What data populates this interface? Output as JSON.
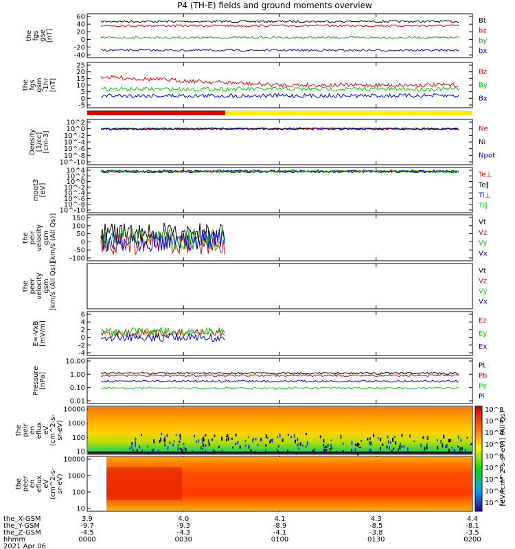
{
  "title": "P4 (TH-E) fields and ground moments overview",
  "date_label": "2021 Apr 06",
  "footer": {
    "row_labels": [
      "the_X-GSM",
      "the_Y-GSM",
      "the_Z-GSM",
      "hhmm"
    ],
    "columns": [
      [
        "3.9",
        "-9.7",
        "-4.5",
        "0000"
      ],
      [
        "4.0",
        "-9.3",
        "-4.3",
        "0030"
      ],
      [
        "4.1",
        "-8.9",
        "-4.1",
        "0100"
      ],
      [
        "4.3",
        "-8.5",
        "-3.8",
        "0130"
      ],
      [
        "4.4",
        "-8.1",
        "-3.5",
        "0200"
      ]
    ]
  },
  "colorbar_label": "[eV/(cm^2-s-sr-eV)] (All Qs)",
  "colors": {
    "black": "#000000",
    "red": "#dd0000",
    "green": "#00cc00",
    "blue": "#0000cc",
    "purple": "#8800aa",
    "yellow": "#ffee00",
    "orange": "#ff8800"
  },
  "chart_data": [
    {
      "type": "line",
      "panel": "fgs_gse",
      "ylabel": [
        "the",
        "fgs",
        "gse",
        "[nT]"
      ],
      "ylim": [
        -40,
        60
      ],
      "yticks": [
        "60",
        "40",
        "20",
        "0",
        "-20",
        "-40"
      ],
      "series": [
        {
          "name": "Bt",
          "color": "#000000",
          "level": 47
        },
        {
          "name": "bz",
          "color": "#dd0000",
          "level": 36
        },
        {
          "name": "by",
          "color": "#00aa00",
          "level": 5
        },
        {
          "name": "bx",
          "color": "#0000cc",
          "level": -28
        }
      ]
    },
    {
      "type": "line",
      "panel": "fgs_gsm",
      "ylabel": [
        "the",
        "fgs",
        "gsm",
        "-1hr",
        "[nT]"
      ],
      "ylim": [
        -5,
        25
      ],
      "yticks": [
        "25",
        "20",
        "15",
        "10",
        "5",
        "0",
        "-5"
      ],
      "series": [
        {
          "name": "Bz",
          "color": "#dd0000",
          "level": 10
        },
        {
          "name": "By",
          "color": "#00cc00",
          "level": 7
        },
        {
          "name": "Bx",
          "color": "#0000cc",
          "level": 2
        }
      ]
    },
    {
      "type": "bar",
      "panel": "mode_bar",
      "segments": [
        {
          "from": "0000",
          "to": "0043",
          "color": "#dd0000"
        },
        {
          "from": "0043",
          "to": "0200",
          "color": "#ffee00"
        }
      ]
    },
    {
      "type": "line",
      "panel": "density",
      "ylabel": [
        "Density",
        "[1/cc]",
        "[cm-3]"
      ],
      "log": true,
      "yticks": [
        "10^2",
        "10^0",
        "10^-2",
        "10^-4",
        "10^-6",
        "10^-8",
        "10^-10"
      ],
      "series": [
        {
          "name": "Ne",
          "color": "#dd0000",
          "level": 1
        },
        {
          "name": "Ni",
          "color": "#000000",
          "level": 1
        },
        {
          "name": "Npot",
          "color": "#0000cc",
          "level": 1
        }
      ]
    },
    {
      "type": "line",
      "panel": "temperature",
      "ylabel": [
        "moqt3",
        "[eV]"
      ],
      "log": true,
      "yticks": [
        "10^4",
        "10^2",
        "10^0",
        "10^-2",
        "10^-4",
        "10^-6",
        "10^-8",
        "10^-10"
      ],
      "series": [
        {
          "name": "Te⊥",
          "color": "#dd0000",
          "level": 3000
        },
        {
          "name": "Te∥",
          "color": "#000000",
          "level": 3000
        },
        {
          "name": "Ti⊥",
          "color": "#0000cc",
          "level": 5000
        },
        {
          "name": "Ti∥",
          "color": "#00cc00",
          "level": 4000
        }
      ]
    },
    {
      "type": "line",
      "panel": "peir_velocity",
      "ylabel": [
        "the",
        "peir",
        "velocity",
        "gsm",
        "[km/s (All Qs)]"
      ],
      "ylim": [
        -100,
        150
      ],
      "yticks": [
        "150",
        "100",
        "50",
        "0",
        "-50",
        "-100"
      ],
      "series": [
        {
          "name": "Vt",
          "color": "#000000",
          "level": 50
        },
        {
          "name": "Vz",
          "color": "#dd0000",
          "level": -10
        },
        {
          "name": "Vy",
          "color": "#00cc00",
          "level": 15
        },
        {
          "name": "Vx",
          "color": "#0000cc",
          "level": 10
        }
      ]
    },
    {
      "type": "line",
      "panel": "peer_velocity",
      "ylabel": [
        "the",
        "peer",
        "velocity",
        "gsm",
        "[km/s (All Qs)]"
      ],
      "series": [
        {
          "name": "Vt",
          "color": "#000000"
        },
        {
          "name": "Vz",
          "color": "#dd0000"
        },
        {
          "name": "Vy",
          "color": "#00cc00"
        },
        {
          "name": "Vx",
          "color": "#0000cc"
        }
      ]
    },
    {
      "type": "line",
      "panel": "efield",
      "ylabel": [
        "E=-VxB",
        "[mV/m]"
      ],
      "ylim": [
        -4,
        6
      ],
      "yticks": [
        "6",
        "4",
        "2",
        "0",
        "-2",
        "-4"
      ],
      "series": [
        {
          "name": "Ez",
          "color": "#dd0000",
          "level": 1
        },
        {
          "name": "Ey",
          "color": "#00cc00",
          "level": 1.5
        },
        {
          "name": "Ex",
          "color": "#0000cc",
          "level": 0
        }
      ]
    },
    {
      "type": "line",
      "panel": "pressure",
      "ylabel": [
        "Pressure",
        "[nPa]"
      ],
      "log": true,
      "yticks": [
        "10.00",
        "1.00",
        "0.10",
        "0.01"
      ],
      "series": [
        {
          "name": "Pt",
          "color": "#000000",
          "level": 1.2
        },
        {
          "name": "Pb",
          "color": "#dd0000",
          "level": 0.8
        },
        {
          "name": "Pe",
          "color": "#00cc00",
          "level": 0.09
        },
        {
          "name": "Pi",
          "color": "#0000cc",
          "level": 0.3
        }
      ]
    },
    {
      "type": "heatmap",
      "panel": "peir_spec",
      "ylabel": [
        "the",
        "peir",
        "en",
        "eflux",
        "eV",
        "(cm^2-s-",
        "sr-eV)"
      ],
      "yticks": [
        "10000",
        "1000",
        "100",
        "10"
      ]
    },
    {
      "type": "heatmap",
      "panel": "peer_spec",
      "ylabel": [
        "the",
        "peer",
        "en",
        "eflux",
        "eV",
        "(cm^2-s-",
        "sr-eV)"
      ],
      "yticks": [
        "10000",
        "1000",
        "100",
        "10"
      ]
    },
    {
      "type": "colorbar",
      "panel": "colorbars",
      "ticks": [
        "10^8",
        "10^6",
        "10^4",
        "10^2",
        "10^0",
        "10^6",
        "10^5",
        "10^4",
        "10^3"
      ]
    }
  ]
}
